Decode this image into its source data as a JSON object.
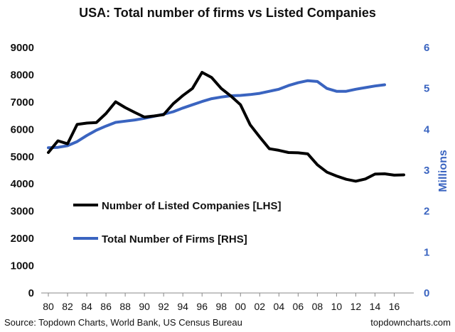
{
  "chart_data": {
    "type": "line",
    "title": "USA: Total number of firms vs Listed Companies",
    "x_tick_labels": [
      "80",
      "82",
      "84",
      "86",
      "88",
      "90",
      "92",
      "94",
      "96",
      "98",
      "00",
      "02",
      "04",
      "06",
      "08",
      "10",
      "12",
      "14",
      "16"
    ],
    "x_years": [
      1980,
      1981,
      1982,
      1983,
      1984,
      1985,
      1986,
      1987,
      1988,
      1989,
      1990,
      1991,
      1992,
      1993,
      1994,
      1995,
      1996,
      1997,
      1998,
      1999,
      2000,
      2001,
      2002,
      2003,
      2004,
      2005,
      2006,
      2007,
      2008,
      2009,
      2010,
      2011,
      2012,
      2013,
      2014,
      2015,
      2016,
      2017
    ],
    "y_left": {
      "range": [
        0,
        9000
      ],
      "ticks": [
        "0",
        "1000",
        "2000",
        "3000",
        "4000",
        "5000",
        "6000",
        "7000",
        "8000",
        "9000"
      ]
    },
    "y_right": {
      "range": [
        0,
        6
      ],
      "ticks": [
        "0",
        "1",
        "2",
        "3",
        "4",
        "5",
        "6"
      ],
      "label": "Millions"
    },
    "series": [
      {
        "name": "Number of Listed Companies [LHS]",
        "axis": "left",
        "color": "#000000",
        "x": [
          1980,
          1981,
          1982,
          1983,
          1984,
          1985,
          1986,
          1987,
          1988,
          1989,
          1990,
          1991,
          1992,
          1993,
          1994,
          1995,
          1996,
          1997,
          1998,
          1999,
          2000,
          2001,
          2002,
          2003,
          2004,
          2005,
          2006,
          2007,
          2008,
          2009,
          2010,
          2011,
          2012,
          2013,
          2014,
          2015,
          2016,
          2017
        ],
        "values": [
          5150,
          5580,
          5470,
          6180,
          6230,
          6250,
          6580,
          7010,
          6800,
          6620,
          6450,
          6490,
          6540,
          6940,
          7240,
          7500,
          8090,
          7900,
          7500,
          7220,
          6900,
          6170,
          5720,
          5290,
          5230,
          5150,
          5140,
          5100,
          4700,
          4430,
          4290,
          4170,
          4100,
          4180,
          4360,
          4370,
          4320,
          4330
        ]
      },
      {
        "name": "Total Number of Firms [RHS]",
        "axis": "right",
        "color": "#3a64c0",
        "x": [
          1980,
          1981,
          1982,
          1983,
          1984,
          1985,
          1986,
          1987,
          1988,
          1989,
          1990,
          1991,
          1992,
          1993,
          1994,
          1995,
          1996,
          1997,
          1998,
          1999,
          2000,
          2001,
          2002,
          2003,
          2004,
          2005,
          2006,
          2007,
          2008,
          2009,
          2010,
          2011,
          2012,
          2013,
          2014,
          2015
        ],
        "values": [
          3.55,
          3.56,
          3.6,
          3.7,
          3.85,
          3.98,
          4.08,
          4.17,
          4.2,
          4.23,
          4.27,
          4.32,
          4.37,
          4.43,
          4.52,
          4.6,
          4.68,
          4.75,
          4.79,
          4.82,
          4.83,
          4.85,
          4.88,
          4.93,
          4.98,
          5.07,
          5.14,
          5.19,
          5.17,
          5.0,
          4.93,
          4.93,
          4.98,
          5.02,
          5.06,
          5.09
        ]
      }
    ],
    "legend": {
      "placement": "center-left"
    },
    "grid": false
  },
  "footer": {
    "source": "Source: Topdown Charts, World Bank, US Census Bureau",
    "brand": "topdowncharts.com"
  }
}
